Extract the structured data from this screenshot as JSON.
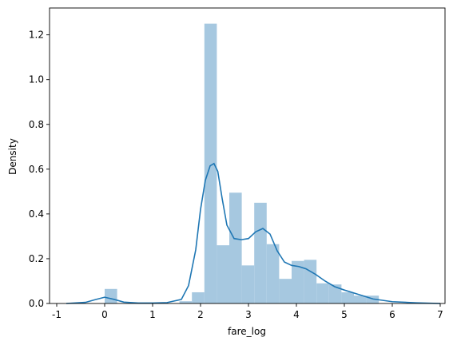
{
  "chart_data": {
    "type": "histogram",
    "title": "",
    "xlabel": "fare_log",
    "ylabel": "Density",
    "xlim": [
      -1.0,
      7.0
    ],
    "ylim": [
      0.0,
      1.3
    ],
    "x_ticks": [
      -1,
      0,
      1,
      2,
      3,
      4,
      5,
      6,
      7
    ],
    "y_ticks": [
      0.0,
      0.2,
      0.4,
      0.6,
      0.8,
      1.0,
      1.2
    ],
    "grid": false,
    "legend": "none",
    "histogram": {
      "color": "#a6c8e0",
      "bin_edges": [
        0.0,
        0.26,
        0.52,
        0.78,
        1.04,
        1.3,
        1.56,
        1.82,
        2.08,
        2.34,
        2.6,
        2.86,
        3.12,
        3.38,
        3.64,
        3.9,
        4.16,
        4.42,
        4.68,
        4.94,
        5.2,
        5.46,
        5.72
      ],
      "densities": [
        0.065,
        0.0,
        0.0,
        0.0,
        0.0,
        0.0,
        0.01,
        0.05,
        1.25,
        0.26,
        0.495,
        0.17,
        0.45,
        0.265,
        0.11,
        0.19,
        0.195,
        0.09,
        0.085,
        0.05,
        0.035,
        0.035
      ]
    },
    "kde": {
      "color": "#1f77b4",
      "x": [
        -0.8,
        -0.4,
        -0.2,
        0.0,
        0.2,
        0.4,
        0.7,
        1.0,
        1.3,
        1.6,
        1.75,
        1.9,
        2.0,
        2.1,
        2.2,
        2.28,
        2.36,
        2.45,
        2.55,
        2.7,
        2.85,
        3.0,
        3.15,
        3.3,
        3.45,
        3.6,
        3.75,
        3.9,
        4.05,
        4.2,
        4.4,
        4.6,
        4.8,
        5.0,
        5.3,
        5.6,
        6.0,
        6.5,
        7.0
      ],
      "y": [
        0.0,
        0.005,
        0.017,
        0.028,
        0.018,
        0.006,
        0.002,
        0.002,
        0.004,
        0.018,
        0.08,
        0.24,
        0.42,
        0.55,
        0.615,
        0.625,
        0.59,
        0.47,
        0.35,
        0.29,
        0.285,
        0.29,
        0.32,
        0.335,
        0.31,
        0.235,
        0.185,
        0.17,
        0.165,
        0.155,
        0.13,
        0.1,
        0.075,
        0.06,
        0.04,
        0.02,
        0.008,
        0.003,
        0.0
      ]
    }
  }
}
